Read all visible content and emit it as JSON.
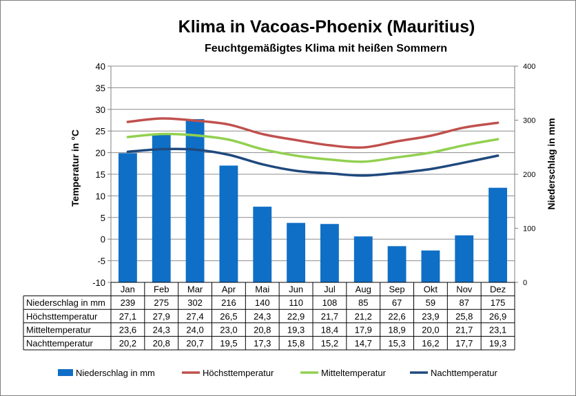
{
  "chart_data": {
    "type": "bar",
    "title": "Klima in Vacoas-Phoenix (Mauritius)",
    "subtitle": "Feuchtgemäßigtes Klima mit heißen Sommern",
    "ylabel_left": "Temperatur in °C",
    "ylabel_right": "Niederschlag in mm",
    "ylim_left": [
      -10,
      40
    ],
    "ylim_right": [
      0,
      400
    ],
    "yticks_left": [
      40,
      35,
      30,
      25,
      20,
      15,
      10,
      5,
      0,
      -5,
      -10
    ],
    "yticks_right": [
      400,
      300,
      200,
      100,
      0
    ],
    "categories": [
      "Jan",
      "Feb",
      "Mar",
      "Apr",
      "Mai",
      "Jun",
      "Jul",
      "Aug",
      "Sep",
      "Okt",
      "Nov",
      "Dez"
    ],
    "grid": true,
    "legend_position": "bottom",
    "series": [
      {
        "name": "Niederschlag in mm",
        "type": "bar",
        "axis": "right",
        "color": "#0f6fc6",
        "values": [
          239,
          275,
          302,
          216,
          140,
          110,
          108,
          85,
          67,
          59,
          87,
          175
        ],
        "display": [
          "239",
          "275",
          "302",
          "216",
          "140",
          "110",
          "108",
          "85",
          "67",
          "59",
          "87",
          "175"
        ]
      },
      {
        "name": "Höchsttemperatur",
        "type": "line",
        "axis": "left",
        "color": "#c0504d",
        "values": [
          27.1,
          27.9,
          27.4,
          26.5,
          24.3,
          22.9,
          21.7,
          21.2,
          22.6,
          23.9,
          25.8,
          26.9
        ],
        "display": [
          "27,1",
          "27,9",
          "27,4",
          "26,5",
          "24,3",
          "22,9",
          "21,7",
          "21,2",
          "22,6",
          "23,9",
          "25,8",
          "26,9"
        ]
      },
      {
        "name": "Mitteltemperatur",
        "type": "line",
        "axis": "left",
        "color": "#92d050",
        "values": [
          23.6,
          24.3,
          24.0,
          23.0,
          20.8,
          19.3,
          18.4,
          17.9,
          18.9,
          20.0,
          21.7,
          23.1
        ],
        "display": [
          "23,6",
          "24,3",
          "24,0",
          "23,0",
          "20,8",
          "19,3",
          "18,4",
          "17,9",
          "18,9",
          "20,0",
          "21,7",
          "23,1"
        ]
      },
      {
        "name": "Nachttemperatur",
        "type": "line",
        "axis": "left",
        "color": "#1f497d",
        "values": [
          20.2,
          20.8,
          20.7,
          19.5,
          17.3,
          15.8,
          15.2,
          14.7,
          15.3,
          16.2,
          17.7,
          19.3
        ],
        "display": [
          "20,2",
          "20,8",
          "20,7",
          "19,5",
          "17,3",
          "15,8",
          "15,2",
          "14,7",
          "15,3",
          "16,2",
          "17,7",
          "19,3"
        ]
      }
    ]
  }
}
